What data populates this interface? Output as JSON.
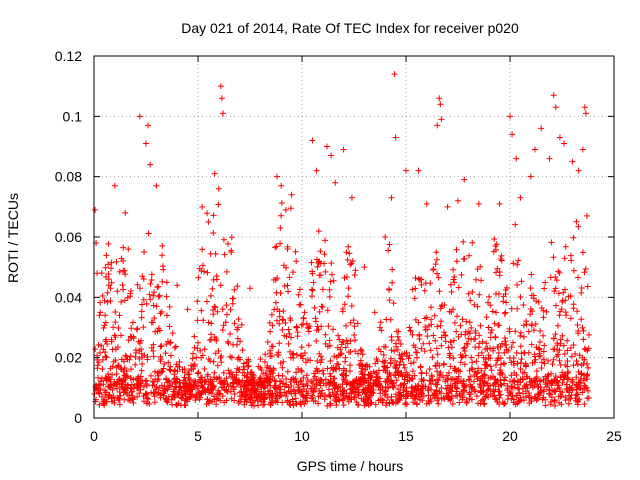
{
  "chart_data": {
    "type": "scatter",
    "title": "Day 021 of 2014, Rate Of TEC Index for receiver p020",
    "xlabel": "GPS time / hours",
    "ylabel": "ROTI / TECUs",
    "xlim": [
      0,
      25
    ],
    "ylim": [
      0,
      0.12
    ],
    "xticks": [
      0,
      5,
      10,
      15,
      20,
      25
    ],
    "xtick_labels": [
      "0",
      "5",
      "10",
      "15",
      "20",
      "25"
    ],
    "yticks": [
      0,
      0.02,
      0.04,
      0.06,
      0.08,
      0.1,
      0.12
    ],
    "ytick_labels": [
      "0",
      "0.02",
      "0.04",
      "0.06",
      "0.08",
      "0.1",
      "0.12"
    ],
    "grid": true,
    "marker": "plus",
    "color": "#ff0000",
    "series": [
      {
        "name": "ROTI",
        "points": [
          [
            0.05,
            0.069
          ],
          [
            0.1,
            0.058
          ],
          [
            0.15,
            0.048
          ],
          [
            0.3,
            0.035
          ],
          [
            1.0,
            0.077
          ],
          [
            1.5,
            0.068
          ],
          [
            2.2,
            0.1
          ],
          [
            2.5,
            0.091
          ],
          [
            2.6,
            0.097
          ],
          [
            2.7,
            0.084
          ],
          [
            3.0,
            0.077
          ],
          [
            4.0,
            0.044
          ],
          [
            4.5,
            0.036
          ],
          [
            5.2,
            0.07
          ],
          [
            5.5,
            0.065
          ],
          [
            5.8,
            0.081
          ],
          [
            6.0,
            0.076
          ],
          [
            6.1,
            0.11
          ],
          [
            6.15,
            0.106
          ],
          [
            6.2,
            0.101
          ],
          [
            6.6,
            0.055
          ],
          [
            7.5,
            0.043
          ],
          [
            8.8,
            0.08
          ],
          [
            9.0,
            0.077
          ],
          [
            9.5,
            0.074
          ],
          [
            10.5,
            0.092
          ],
          [
            10.7,
            0.082
          ],
          [
            11.2,
            0.09
          ],
          [
            11.4,
            0.087
          ],
          [
            11.6,
            0.078
          ],
          [
            12.0,
            0.089
          ],
          [
            12.4,
            0.073
          ],
          [
            13.0,
            0.05
          ],
          [
            13.5,
            0.035
          ],
          [
            14.0,
            0.06
          ],
          [
            14.3,
            0.073
          ],
          [
            14.45,
            0.114
          ],
          [
            14.5,
            0.093
          ],
          [
            15.0,
            0.082
          ],
          [
            15.6,
            0.082
          ],
          [
            16.0,
            0.071
          ],
          [
            16.5,
            0.097
          ],
          [
            16.6,
            0.106
          ],
          [
            16.65,
            0.104
          ],
          [
            16.7,
            0.099
          ],
          [
            17.0,
            0.07
          ],
          [
            17.5,
            0.072
          ],
          [
            17.8,
            0.079
          ],
          [
            18.5,
            0.071
          ],
          [
            19.5,
            0.071
          ],
          [
            20.0,
            0.1
          ],
          [
            20.1,
            0.094
          ],
          [
            20.3,
            0.086
          ],
          [
            20.5,
            0.073
          ],
          [
            21.0,
            0.08
          ],
          [
            21.2,
            0.089
          ],
          [
            21.5,
            0.096
          ],
          [
            21.9,
            0.086
          ],
          [
            22.1,
            0.107
          ],
          [
            22.2,
            0.103
          ],
          [
            22.4,
            0.093
          ],
          [
            22.6,
            0.091
          ],
          [
            23.0,
            0.085
          ],
          [
            23.3,
            0.082
          ],
          [
            23.5,
            0.089
          ],
          [
            23.6,
            0.103
          ],
          [
            23.65,
            0.101
          ],
          [
            23.7,
            0.067
          ]
        ]
      }
    ]
  }
}
